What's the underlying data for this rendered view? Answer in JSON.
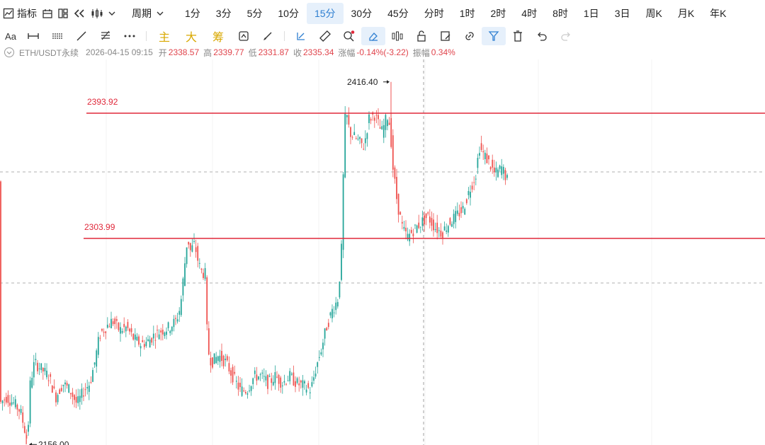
{
  "toolbar": {
    "indicator_label": "指标",
    "period_label": "周期",
    "timeframes": [
      "1分",
      "3分",
      "5分",
      "10分",
      "15分",
      "30分",
      "45分",
      "分时",
      "1时",
      "2时",
      "4时",
      "8时",
      "1日",
      "3日",
      "周K",
      "月K",
      "年K"
    ],
    "active_timeframe": "15分"
  },
  "drawing_toolbar": {
    "text_tool": "Aa",
    "main_label": "主",
    "big_label": "大",
    "chip_label": "筹"
  },
  "info": {
    "symbol": "ETH/USDT永续",
    "datetime": "2026-04-15 09:15",
    "open_label": "开",
    "open": "2338.57",
    "high_label": "高",
    "high": "2339.77",
    "low_label": "低",
    "low": "2331.87",
    "close_label": "收",
    "close": "2335.34",
    "change_label": "涨幅",
    "change": "-0.14%(-3.22)",
    "amplitude_label": "振幅",
    "amplitude": "0.34%"
  },
  "colors": {
    "up": "#26a69a",
    "down": "#ef5350",
    "line": "#e0283a",
    "active": "#2f7fd1"
  },
  "chart_data": {
    "type": "candlestick",
    "ylim": [
      2145,
      2430
    ],
    "horizontal_lines": [
      {
        "label": "2393.92",
        "value": 2393.92
      },
      {
        "label": "2303.99",
        "value": 2303.99
      }
    ],
    "annotations": [
      {
        "label": "2416.40",
        "value": 2416.4,
        "kind": "high"
      },
      {
        "label": "2156.00",
        "value": 2156.0,
        "kind": "low"
      }
    ],
    "price_path": [
      [
        0,
        2185
      ],
      [
        10,
        2190
      ],
      [
        20,
        2186
      ],
      [
        30,
        2180
      ],
      [
        37,
        2165
      ],
      [
        40,
        2158
      ],
      [
        44,
        2200
      ],
      [
        50,
        2215
      ],
      [
        60,
        2210
      ],
      [
        70,
        2205
      ],
      [
        80,
        2190
      ],
      [
        90,
        2200
      ],
      [
        100,
        2195
      ],
      [
        110,
        2185
      ],
      [
        120,
        2195
      ],
      [
        128,
        2200
      ],
      [
        135,
        2215
      ],
      [
        142,
        2235
      ],
      [
        150,
        2240
      ],
      [
        160,
        2245
      ],
      [
        170,
        2238
      ],
      [
        180,
        2240
      ],
      [
        190,
        2232
      ],
      [
        200,
        2228
      ],
      [
        210,
        2230
      ],
      [
        220,
        2235
      ],
      [
        230,
        2238
      ],
      [
        240,
        2240
      ],
      [
        250,
        2245
      ],
      [
        256,
        2255
      ],
      [
        262,
        2285
      ],
      [
        266,
        2305
      ],
      [
        270,
        2295
      ],
      [
        276,
        2300
      ],
      [
        282,
        2285
      ],
      [
        286,
        2280
      ],
      [
        292,
        2278
      ],
      [
        294,
        2225
      ],
      [
        300,
        2215
      ],
      [
        310,
        2220
      ],
      [
        320,
        2215
      ],
      [
        330,
        2205
      ],
      [
        340,
        2195
      ],
      [
        350,
        2195
      ],
      [
        360,
        2205
      ],
      [
        370,
        2205
      ],
      [
        380,
        2200
      ],
      [
        390,
        2205
      ],
      [
        400,
        2200
      ],
      [
        410,
        2205
      ],
      [
        420,
        2200
      ],
      [
        430,
        2198
      ],
      [
        440,
        2195
      ],
      [
        447,
        2210
      ],
      [
        455,
        2225
      ],
      [
        462,
        2240
      ],
      [
        470,
        2252
      ],
      [
        478,
        2260
      ],
      [
        483,
        2290
      ],
      [
        486,
        2350
      ],
      [
        489,
        2397
      ],
      [
        495,
        2380
      ],
      [
        505,
        2375
      ],
      [
        515,
        2370
      ],
      [
        522,
        2390
      ],
      [
        530,
        2393
      ],
      [
        540,
        2380
      ],
      [
        548,
        2392
      ],
      [
        552,
        2385
      ],
      [
        556,
        2355
      ],
      [
        562,
        2330
      ],
      [
        570,
        2310
      ],
      [
        577,
        2305
      ],
      [
        585,
        2310
      ],
      [
        595,
        2315
      ],
      [
        605,
        2320
      ],
      [
        615,
        2312
      ],
      [
        625,
        2308
      ],
      [
        635,
        2315
      ],
      [
        645,
        2320
      ],
      [
        655,
        2325
      ],
      [
        665,
        2340
      ],
      [
        673,
        2350
      ],
      [
        678,
        2370
      ],
      [
        683,
        2365
      ],
      [
        690,
        2360
      ],
      [
        700,
        2350
      ],
      [
        710,
        2355
      ],
      [
        718,
        2345
      ]
    ],
    "wicks": [
      {
        "x": 37,
        "low": 2156.0
      },
      {
        "x": 552,
        "high": 2416.4
      }
    ]
  }
}
